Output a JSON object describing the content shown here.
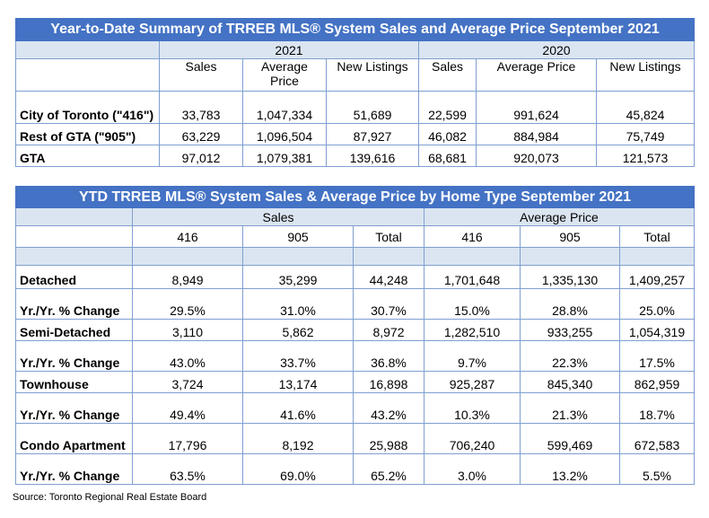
{
  "summary": {
    "title": "Year-to-Date Summary of TRREB MLS® System Sales and Average Price September 2021",
    "year_a": "2021",
    "year_b": "2020",
    "headers": [
      "Sales",
      "Average Price",
      "New Listings",
      "Sales",
      "Average Price",
      "New Listings"
    ],
    "rows": [
      {
        "label": "City of Toronto (\"416\")",
        "values": [
          "33,783",
          "1,047,334",
          "51,689",
          "22,599",
          "991,624",
          "45,824"
        ]
      },
      {
        "label": "Rest of GTA (\"905\")",
        "values": [
          "63,229",
          "1,096,504",
          "87,927",
          "46,082",
          "884,984",
          "75,749"
        ]
      },
      {
        "label": "GTA",
        "values": [
          "97,012",
          "1,079,381",
          "139,616",
          "68,681",
          "920,073",
          "121,573"
        ]
      }
    ]
  },
  "by_type": {
    "title": "YTD TRREB MLS® System Sales & Average Price by Home Type September 2021",
    "group_a": "Sales",
    "group_b": "Average Price",
    "headers": [
      "416",
      "905",
      "Total",
      "416",
      "905",
      "Total"
    ],
    "rows": [
      {
        "label": "Detached",
        "values": [
          "8,949",
          "35,299",
          "44,248",
          "1,701,648",
          "1,335,130",
          "1,409,257"
        ]
      },
      {
        "label": "Yr./Yr. % Change",
        "values": [
          "29.5%",
          "31.0%",
          "30.7%",
          "15.0%",
          "28.8%",
          "25.0%"
        ]
      },
      {
        "label": "Semi-Detached",
        "values": [
          "3,110",
          "5,862",
          "8,972",
          "1,282,510",
          "933,255",
          "1,054,319"
        ]
      },
      {
        "label": "Yr./Yr. % Change",
        "values": [
          "43.0%",
          "33.7%",
          "36.8%",
          "9.7%",
          "22.3%",
          "17.5%"
        ]
      },
      {
        "label": "Townhouse",
        "values": [
          "3,724",
          "13,174",
          "16,898",
          "925,287",
          "845,340",
          "862,959"
        ]
      },
      {
        "label": "Yr./Yr. % Change",
        "values": [
          "49.4%",
          "41.6%",
          "43.2%",
          "10.3%",
          "21.3%",
          "18.7%"
        ]
      },
      {
        "label": "Condo Apartment",
        "values": [
          "17,796",
          "8,192",
          "25,988",
          "706,240",
          "599,469",
          "672,583"
        ]
      },
      {
        "label": "Yr./Yr. % Change",
        "values": [
          "63.5%",
          "69.0%",
          "65.2%",
          "3.0%",
          "13.2%",
          "5.5%"
        ]
      }
    ]
  },
  "source": "Source: Toronto Regional Real Estate Board"
}
